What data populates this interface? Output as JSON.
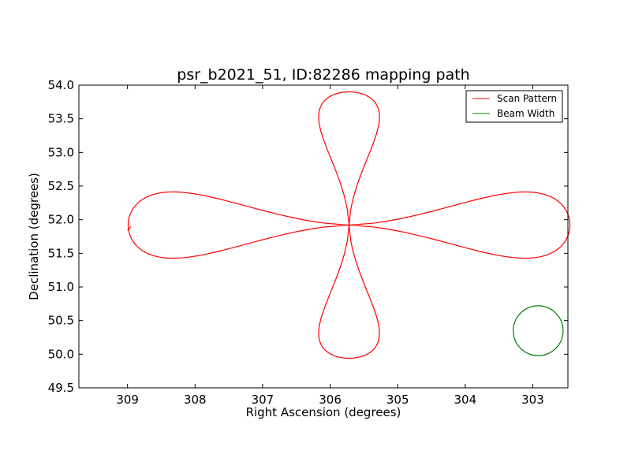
{
  "chart_data": {
    "type": "line",
    "title": "psr_b2021_51, ID:82286 mapping path",
    "xlabel": "Right Ascension (degrees)",
    "ylabel": "Declination (degrees)",
    "xlim": [
      309.72,
      302.48
    ],
    "ylim": [
      49.5,
      54.0
    ],
    "x_inverted": true,
    "grid": false,
    "legend_position": "top-right",
    "xticks": [
      309,
      308,
      307,
      306,
      305,
      304,
      303
    ],
    "xtick_labels": [
      "309",
      "308",
      "307",
      "306",
      "305",
      "304",
      "303"
    ],
    "yticks": [
      49.5,
      50.0,
      50.5,
      51.0,
      51.5,
      52.0,
      52.5,
      53.0,
      53.5,
      54.0
    ],
    "ytick_labels": [
      "49.5",
      "50.0",
      "50.5",
      "51.0",
      "51.5",
      "52.0",
      "52.5",
      "53.0",
      "53.5",
      "54.0"
    ],
    "series": [
      {
        "name": "Scan Pattern",
        "color": "#ff0000",
        "description_points": "rose/clover scan path centred on RA 305.72, Dec 51.92",
        "center": [
          305.72,
          51.92
        ],
        "lobe_extent_ra": 3.27,
        "lobe_extent_dec": 1.98,
        "lobe_half_width_dec": 0.55,
        "start": [
          309.0,
          51.92
        ]
      },
      {
        "name": "Beam Width",
        "color": "#008000",
        "center": [
          302.92,
          50.35
        ],
        "radius_deg": 0.37
      }
    ]
  }
}
